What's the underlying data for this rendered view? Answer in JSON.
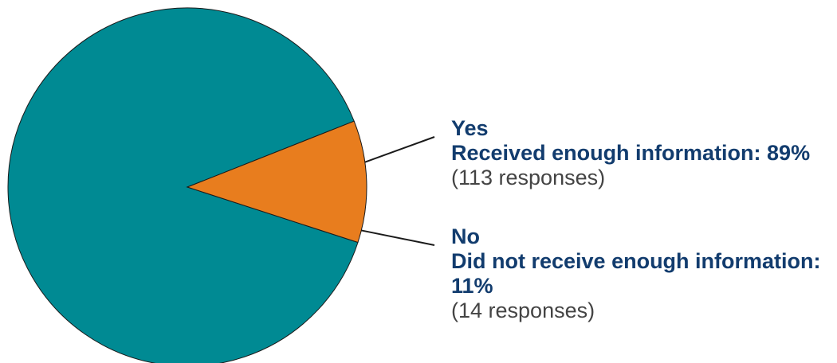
{
  "chart_data": {
    "type": "pie",
    "title": "",
    "slices": [
      {
        "key": "yes",
        "answer": "Yes",
        "description": "Received enough information: 89%",
        "responses_text": "(113 responses)",
        "percent": 89,
        "responses": 113,
        "color": "#008a93"
      },
      {
        "key": "no",
        "answer": "No",
        "description": "Did not receive enough information: 11%",
        "responses_text": "(14 responses)",
        "percent": 11,
        "responses": 14,
        "color": "#e87d1e"
      }
    ]
  }
}
